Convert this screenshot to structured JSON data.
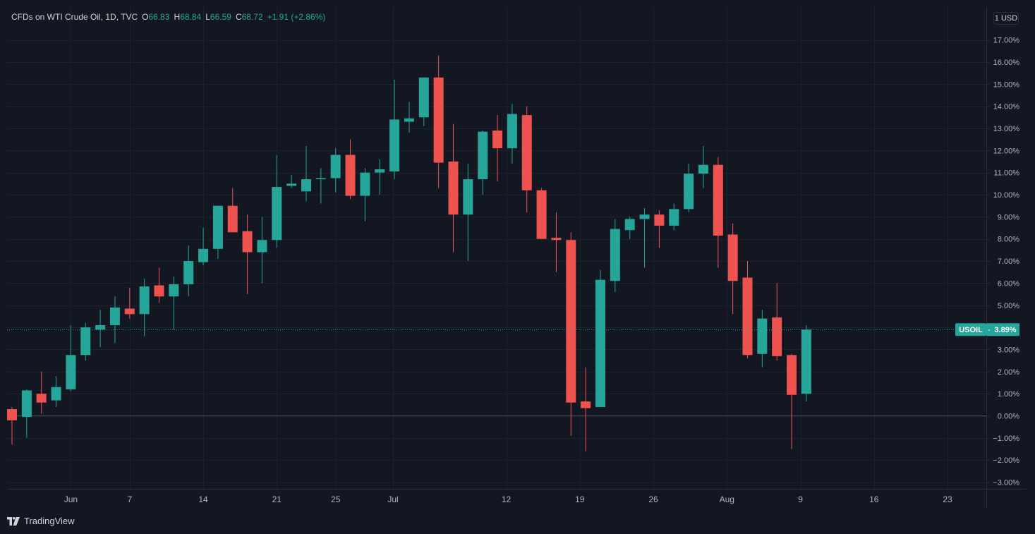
{
  "legend": {
    "title": "CFDs on WTI Crude Oil, 1D, TVC",
    "o_label": "O",
    "o_value": "66.83",
    "h_label": "H",
    "h_value": "68.84",
    "l_label": "L",
    "l_value": "66.59",
    "c_label": "C",
    "c_value": "68.72",
    "change": "+1.91 (+2.86%)"
  },
  "currency_button": "1 USD",
  "brand": "TradingView",
  "colors": {
    "up": "#26a69a",
    "down": "#ef5350",
    "background": "#131722",
    "grid": "#1e222d",
    "text": "#b2b5be"
  },
  "chart_data": {
    "type": "candlestick",
    "symbol": "USOIL",
    "last_value_label": "3.89%",
    "y_unit": "%",
    "ylim": [
      -3.5,
      17.8
    ],
    "y_ticks": [
      -3,
      -2,
      -1,
      0,
      1,
      2,
      3,
      4,
      5,
      6,
      7,
      8,
      9,
      10,
      11,
      12,
      13,
      14,
      15,
      16,
      17
    ],
    "y_tick_labels": [
      "−3.00%",
      "−2.00%",
      "−1.00%",
      "0.00%",
      "1.00%",
      "2.00%",
      "3.00%",
      "4.00%",
      "5.00%",
      "6.00%",
      "7.00%",
      "8.00%",
      "9.00%",
      "10.00%",
      "11.00%",
      "12.00%",
      "13.00%",
      "14.00%",
      "15.00%",
      "16.00%",
      "17.00%"
    ],
    "x_ticks": [
      {
        "label": "Jun",
        "index": 4.0
      },
      {
        "label": "7",
        "index": 8.0
      },
      {
        "label": "14",
        "index": 13.0
      },
      {
        "label": "21",
        "index": 18.0
      },
      {
        "label": "25",
        "index": 22.0
      },
      {
        "label": "Jul",
        "index": 25.9
      },
      {
        "label": "12",
        "index": 33.6
      },
      {
        "label": "19",
        "index": 38.6
      },
      {
        "label": "26",
        "index": 43.6
      },
      {
        "label": "Aug",
        "index": 48.6
      },
      {
        "label": "9",
        "index": 53.6
      },
      {
        "label": "16",
        "index": 58.6
      },
      {
        "label": "23",
        "index": 63.6
      }
    ],
    "x_range": [
      -0.5,
      66.8
    ],
    "candles": [
      {
        "o": 0.3,
        "h": 0.4,
        "l": -1.3,
        "c": -0.2
      },
      {
        "o": -0.05,
        "h": 1.2,
        "l": -1.0,
        "c": 1.15
      },
      {
        "o": 1.0,
        "h": 2.0,
        "l": 0.1,
        "c": 0.6
      },
      {
        "o": 0.7,
        "h": 1.8,
        "l": 0.4,
        "c": 1.3
      },
      {
        "o": 1.2,
        "h": 4.1,
        "l": 1.1,
        "c": 2.75
      },
      {
        "o": 2.75,
        "h": 4.2,
        "l": 2.5,
        "c": 4.0
      },
      {
        "o": 3.9,
        "h": 4.8,
        "l": 3.1,
        "c": 4.1
      },
      {
        "o": 4.1,
        "h": 5.4,
        "l": 3.3,
        "c": 4.9
      },
      {
        "o": 4.85,
        "h": 5.8,
        "l": 4.4,
        "c": 4.6
      },
      {
        "o": 4.6,
        "h": 6.2,
        "l": 3.6,
        "c": 5.85
      },
      {
        "o": 5.9,
        "h": 6.7,
        "l": 5.1,
        "c": 5.4
      },
      {
        "o": 5.4,
        "h": 6.3,
        "l": 3.9,
        "c": 5.95
      },
      {
        "o": 5.95,
        "h": 7.7,
        "l": 5.4,
        "c": 7.0
      },
      {
        "o": 6.95,
        "h": 8.5,
        "l": 6.8,
        "c": 7.55
      },
      {
        "o": 7.55,
        "h": 9.5,
        "l": 7.1,
        "c": 9.5
      },
      {
        "o": 9.5,
        "h": 10.3,
        "l": 8.3,
        "c": 8.3
      },
      {
        "o": 8.35,
        "h": 9.1,
        "l": 5.5,
        "c": 7.4
      },
      {
        "o": 7.4,
        "h": 9.0,
        "l": 6.0,
        "c": 7.95
      },
      {
        "o": 7.95,
        "h": 11.8,
        "l": 7.6,
        "c": 10.35
      },
      {
        "o": 10.4,
        "h": 10.9,
        "l": 10.3,
        "c": 10.5
      },
      {
        "o": 10.15,
        "h": 12.2,
        "l": 9.7,
        "c": 10.7
      },
      {
        "o": 10.7,
        "h": 11.2,
        "l": 9.6,
        "c": 10.75
      },
      {
        "o": 10.75,
        "h": 12.1,
        "l": 10.1,
        "c": 11.8
      },
      {
        "o": 11.8,
        "h": 12.5,
        "l": 9.8,
        "c": 9.95
      },
      {
        "o": 9.95,
        "h": 11.2,
        "l": 8.8,
        "c": 11.0
      },
      {
        "o": 11.0,
        "h": 11.6,
        "l": 10.0,
        "c": 11.15
      },
      {
        "o": 11.05,
        "h": 15.2,
        "l": 10.7,
        "c": 13.4
      },
      {
        "o": 13.3,
        "h": 14.2,
        "l": 12.8,
        "c": 13.45
      },
      {
        "o": 13.5,
        "h": 15.3,
        "l": 13.1,
        "c": 15.3
      },
      {
        "o": 15.3,
        "h": 16.3,
        "l": 10.3,
        "c": 11.45
      },
      {
        "o": 11.5,
        "h": 13.2,
        "l": 7.4,
        "c": 9.1
      },
      {
        "o": 9.1,
        "h": 11.4,
        "l": 7.0,
        "c": 10.7
      },
      {
        "o": 10.7,
        "h": 12.9,
        "l": 10.0,
        "c": 12.85
      },
      {
        "o": 12.9,
        "h": 13.6,
        "l": 10.6,
        "c": 12.1
      },
      {
        "o": 12.1,
        "h": 14.1,
        "l": 11.4,
        "c": 13.65
      },
      {
        "o": 13.6,
        "h": 14.0,
        "l": 9.2,
        "c": 10.2
      },
      {
        "o": 10.2,
        "h": 10.3,
        "l": 8.0,
        "c": 8.0
      },
      {
        "o": 8.05,
        "h": 9.2,
        "l": 6.5,
        "c": 7.95
      },
      {
        "o": 7.95,
        "h": 8.3,
        "l": -0.9,
        "c": 0.6
      },
      {
        "o": 0.65,
        "h": 2.2,
        "l": -1.6,
        "c": 0.35
      },
      {
        "o": 0.4,
        "h": 6.6,
        "l": 0.4,
        "c": 6.15
      },
      {
        "o": 6.1,
        "h": 8.9,
        "l": 5.6,
        "c": 8.45
      },
      {
        "o": 8.4,
        "h": 9.0,
        "l": 8.0,
        "c": 8.9
      },
      {
        "o": 8.9,
        "h": 9.4,
        "l": 6.7,
        "c": 9.1
      },
      {
        "o": 9.1,
        "h": 9.3,
        "l": 7.6,
        "c": 8.6
      },
      {
        "o": 8.6,
        "h": 9.6,
        "l": 8.4,
        "c": 9.35
      },
      {
        "o": 9.35,
        "h": 11.4,
        "l": 9.2,
        "c": 10.95
      },
      {
        "o": 10.95,
        "h": 12.2,
        "l": 10.3,
        "c": 11.35
      },
      {
        "o": 11.35,
        "h": 11.7,
        "l": 6.7,
        "c": 8.15
      },
      {
        "o": 8.2,
        "h": 8.7,
        "l": 4.6,
        "c": 6.1
      },
      {
        "o": 6.25,
        "h": 7.0,
        "l": 2.6,
        "c": 2.75
      },
      {
        "o": 2.8,
        "h": 4.8,
        "l": 2.2,
        "c": 4.4
      },
      {
        "o": 4.45,
        "h": 6.0,
        "l": 2.5,
        "c": 2.7
      },
      {
        "o": 2.75,
        "h": 2.8,
        "l": -1.5,
        "c": 0.95
      },
      {
        "o": 1.0,
        "h": 4.1,
        "l": 0.65,
        "c": 3.9
      }
    ]
  }
}
